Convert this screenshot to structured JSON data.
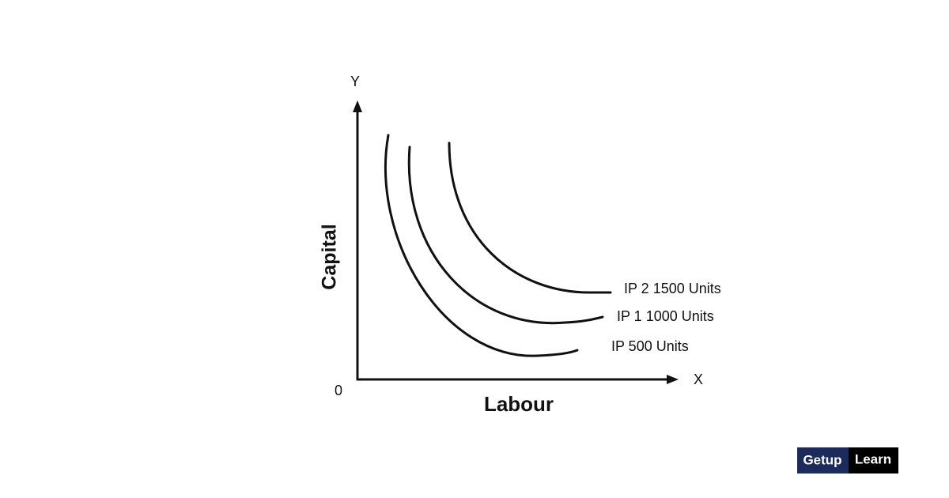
{
  "axes": {
    "y_label": "Y",
    "x_label": "X",
    "origin": "0",
    "y_title": "Capital",
    "x_title": "Labour"
  },
  "curves": [
    {
      "label": "IP 500 Units"
    },
    {
      "label": "IP 1 1000 Units"
    },
    {
      "label": "IP 2 1500 Units"
    }
  ],
  "logo": {
    "left": "Getup",
    "right": "Learn"
  }
}
